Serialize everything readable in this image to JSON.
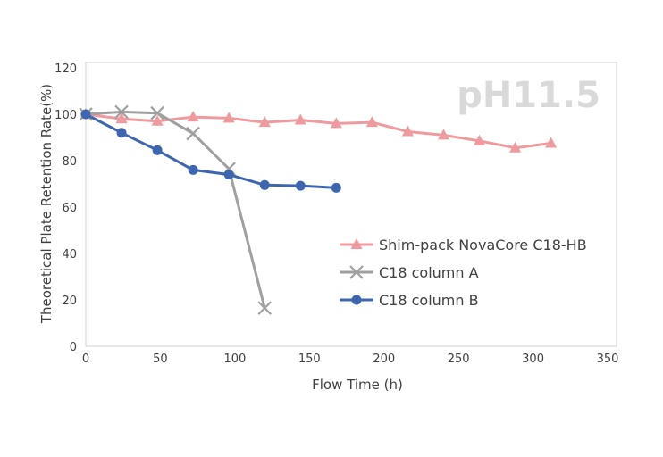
{
  "chart_data": {
    "type": "line",
    "title": "",
    "annotation": "pH11.5",
    "xlabel": "Flow Time (h)",
    "ylabel": "Theoretical Plate Retention Rate(%)",
    "xlim": [
      0,
      350
    ],
    "ylim": [
      0,
      120
    ],
    "xticks": [
      0,
      50,
      100,
      150,
      200,
      250,
      300,
      350
    ],
    "yticks": [
      0,
      20,
      40,
      60,
      80,
      100,
      120
    ],
    "grid": false,
    "legend_position": "center-right",
    "series": [
      {
        "name": "Shim-pack NovaCore C18-HB",
        "color": "#ee9a9e",
        "marker": "triangle",
        "x": [
          0,
          24,
          48,
          72,
          96,
          120,
          144,
          168,
          192,
          216,
          240,
          264,
          288,
          312
        ],
        "values": [
          100,
          98,
          97,
          98.8,
          98.3,
          96.5,
          97.5,
          96,
          96.5,
          92.5,
          91,
          88.5,
          85.5,
          87.5
        ]
      },
      {
        "name": "C18 column A",
        "color": "#a0a0a0",
        "marker": "x",
        "x": [
          0,
          24,
          48,
          72,
          96,
          120
        ],
        "values": [
          100,
          101,
          100.5,
          91.7,
          76.5,
          16.5
        ]
      },
      {
        "name": "C18 column B",
        "color": "#3e66b0",
        "marker": "circle",
        "x": [
          0,
          24,
          48,
          72,
          96,
          120,
          144,
          168
        ],
        "values": [
          100,
          92,
          84.5,
          76,
          74,
          69.5,
          69.2,
          68.3
        ]
      }
    ]
  }
}
